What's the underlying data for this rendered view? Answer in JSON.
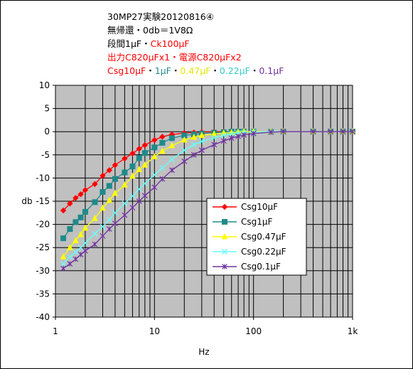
{
  "chart_data": {
    "type": "line",
    "title_lines": [
      {
        "segments": [
          {
            "text": "30MP27実験20120816④",
            "color": "#000000"
          }
        ]
      },
      {
        "segments": [
          {
            "text": "無帰還・0db＝1V8Ω",
            "color": "#000000"
          }
        ]
      },
      {
        "segments": [
          {
            "text": "段間1μF・",
            "color": "#000000"
          },
          {
            "text": "Ck100μF",
            "color": "#ff0000"
          }
        ]
      },
      {
        "segments": [
          {
            "text": "出力C820μFx1・電源C820μFx2",
            "color": "#ff0000"
          }
        ]
      },
      {
        "segments": [
          {
            "text": "Csg10μF",
            "color": "#ff0000"
          },
          {
            "text": "・",
            "color": "#000000"
          },
          {
            "text": "1μF",
            "color": "#1f8a8a"
          },
          {
            "text": "・",
            "color": "#000000"
          },
          {
            "text": "0.47μF",
            "color": "#e6e600"
          },
          {
            "text": "・",
            "color": "#000000"
          },
          {
            "text": "0.22μF",
            "color": "#33cccc"
          },
          {
            "text": "・",
            "color": "#000000"
          },
          {
            "text": "0.1μF",
            "color": "#7030a0"
          }
        ]
      }
    ],
    "xlabel": "Hz",
    "ylabel": "db",
    "x_scale": "log",
    "xlim": [
      1,
      1000
    ],
    "ylim": [
      -40,
      10
    ],
    "x_tick_labels": [
      "1",
      "10",
      "100",
      "1k"
    ],
    "x_tick_values": [
      1,
      10,
      100,
      1000
    ],
    "y_tick_values": [
      10,
      5,
      0,
      -5,
      -10,
      -15,
      -20,
      -25,
      -30,
      -35,
      -40
    ],
    "y_tick_labels": [
      "10",
      "5",
      "0",
      "-5",
      "-10",
      "-15",
      "-20",
      "-25",
      "-30",
      "-35",
      "-40"
    ],
    "grid": true,
    "plot_background": "#c0c0c0",
    "legend_position": "lower-right",
    "series": [
      {
        "name": "Csg10μF",
        "color": "#ff0000",
        "marker": "diamond",
        "x": [
          1.2,
          1.4,
          1.6,
          1.8,
          2,
          2.5,
          3,
          3.5,
          4,
          5,
          6,
          7,
          8,
          10,
          12,
          15,
          20,
          25,
          30,
          40,
          50,
          60,
          70,
          80,
          100,
          150,
          200,
          400,
          600,
          800,
          1000
        ],
        "y": [
          -17,
          -15.5,
          -14.3,
          -13.5,
          -12.6,
          -11.3,
          -9.5,
          -8.3,
          -7.2,
          -5.8,
          -4.7,
          -3.7,
          -2.9,
          -1.8,
          -1.1,
          -0.6,
          -0.3,
          -0.2,
          -0.1,
          0,
          0,
          0,
          0,
          0,
          0,
          0,
          0,
          0,
          0,
          0,
          0
        ]
      },
      {
        "name": "Csg1μF",
        "color": "#1f8a8a",
        "marker": "square",
        "x": [
          1.2,
          1.4,
          1.6,
          1.8,
          2,
          2.5,
          3,
          3.5,
          4,
          5,
          6,
          7,
          8,
          10,
          12,
          15,
          20,
          25,
          30,
          40,
          50,
          60,
          70,
          80,
          100,
          150,
          200,
          400,
          600,
          800,
          1000
        ],
        "y": [
          -23,
          -21,
          -19.5,
          -18.5,
          -17.3,
          -15.2,
          -13,
          -11.7,
          -10.2,
          -8.8,
          -7.5,
          -5.7,
          -4.6,
          -3.4,
          -2.4,
          -1.4,
          -0.8,
          -0.6,
          -0.4,
          -0.2,
          -0.1,
          0,
          0,
          0,
          0,
          0,
          0,
          0,
          0,
          0,
          0
        ]
      },
      {
        "name": "Csg0.47μF",
        "color": "#ffff00",
        "marker": "triangle",
        "x": [
          1.2,
          1.4,
          1.6,
          1.8,
          2,
          2.5,
          3,
          3.5,
          4,
          5,
          6,
          7,
          8,
          10,
          12,
          15,
          20,
          25,
          30,
          40,
          50,
          60,
          70,
          80,
          100,
          150,
          200,
          400,
          600,
          800,
          1000
        ],
        "y": [
          -27,
          -25,
          -23.5,
          -22.2,
          -20.8,
          -18.7,
          -16.5,
          -14.8,
          -13.3,
          -11.5,
          -9.6,
          -8.2,
          -7.2,
          -5.4,
          -4.2,
          -3,
          -1.8,
          -1.2,
          -0.8,
          -0.5,
          -0.3,
          -0.2,
          -0.1,
          0,
          0,
          0,
          0,
          0,
          0,
          0,
          0
        ]
      },
      {
        "name": "Csg0.22μF",
        "color": "#66ffff",
        "marker": "x",
        "x": [
          1.2,
          1.4,
          1.6,
          1.8,
          2,
          2.5,
          3,
          3.5,
          4,
          5,
          6,
          7,
          8,
          10,
          12,
          15,
          20,
          25,
          30,
          40,
          50,
          60,
          70,
          80,
          100,
          150,
          200,
          400,
          600,
          800,
          1000
        ],
        "y": [
          -28.5,
          -27,
          -26,
          -25,
          -24,
          -22,
          -20.5,
          -19,
          -17.5,
          -15.5,
          -13.9,
          -12.4,
          -11.2,
          -9.3,
          -7.8,
          -6,
          -4,
          -2.8,
          -2.1,
          -1.3,
          -0.8,
          -0.5,
          -0.3,
          -0.2,
          -0.1,
          0,
          0,
          0,
          0,
          0,
          0
        ]
      },
      {
        "name": "Csg0.1μF",
        "color": "#7030a0",
        "marker": "asterisk",
        "x": [
          1.2,
          1.4,
          1.6,
          1.8,
          2,
          2.5,
          3,
          3.5,
          4,
          5,
          6,
          7,
          8,
          10,
          12,
          15,
          20,
          25,
          30,
          40,
          50,
          60,
          70,
          80,
          100,
          150,
          200,
          400,
          600,
          800,
          1000
        ],
        "y": [
          -29.5,
          -28.5,
          -27.5,
          -26.5,
          -25.7,
          -24.3,
          -22.5,
          -21,
          -19.8,
          -18,
          -16.4,
          -15,
          -13.8,
          -12,
          -10.2,
          -8.3,
          -6.4,
          -5,
          -4,
          -2.8,
          -2,
          -1.4,
          -1,
          -0.7,
          -0.4,
          -0.1,
          0,
          0,
          0,
          0,
          0
        ]
      }
    ]
  }
}
